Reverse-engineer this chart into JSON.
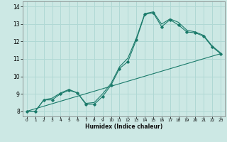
{
  "xlabel": "Humidex (Indice chaleur)",
  "xlim": [
    -0.5,
    23.5
  ],
  "ylim": [
    7.7,
    14.3
  ],
  "xticks": [
    0,
    1,
    2,
    3,
    4,
    5,
    6,
    7,
    8,
    9,
    10,
    11,
    12,
    13,
    14,
    15,
    16,
    17,
    18,
    19,
    20,
    21,
    22,
    23
  ],
  "yticks": [
    8,
    9,
    10,
    11,
    12,
    13,
    14
  ],
  "background_color": "#cce8e4",
  "grid_color": "#b0d8d4",
  "line_color": "#1a7a6a",
  "line1_x": [
    0,
    1,
    2,
    3,
    4,
    5,
    6,
    7,
    8,
    9,
    10,
    11,
    12,
    13,
    14,
    15,
    16,
    17,
    18,
    19,
    20,
    21,
    22,
    23
  ],
  "line1_y": [
    8.0,
    8.0,
    8.65,
    8.65,
    9.0,
    9.2,
    9.05,
    8.4,
    8.4,
    8.85,
    9.5,
    10.45,
    10.85,
    12.1,
    13.55,
    13.65,
    12.85,
    13.25,
    12.95,
    12.55,
    12.5,
    12.3,
    11.7,
    11.3
  ],
  "line2_x": [
    0,
    1,
    2,
    3,
    4,
    5,
    6,
    7,
    8,
    9,
    10,
    11,
    12,
    13,
    14,
    15,
    16,
    17,
    18,
    19,
    20,
    21,
    22,
    23
  ],
  "line2_y": [
    8.0,
    8.0,
    8.65,
    8.75,
    9.05,
    9.25,
    9.05,
    8.45,
    8.5,
    9.0,
    9.6,
    10.55,
    11.05,
    12.2,
    13.6,
    13.7,
    13.0,
    13.3,
    13.1,
    12.65,
    12.55,
    12.35,
    11.75,
    11.35
  ],
  "line3_x": [
    0,
    23
  ],
  "line3_y": [
    8.0,
    11.3
  ],
  "marker_x": [
    0,
    1,
    2,
    3,
    4,
    5,
    6,
    7,
    8,
    9,
    10,
    11,
    12,
    13,
    14,
    15,
    16,
    17,
    18,
    19,
    20,
    21,
    22,
    23
  ],
  "marker_y": [
    8.0,
    8.0,
    8.65,
    8.65,
    9.0,
    9.2,
    9.05,
    8.4,
    8.4,
    8.85,
    9.5,
    10.45,
    10.85,
    12.1,
    13.55,
    13.65,
    12.85,
    13.25,
    12.95,
    12.55,
    12.5,
    12.3,
    11.7,
    11.3
  ]
}
